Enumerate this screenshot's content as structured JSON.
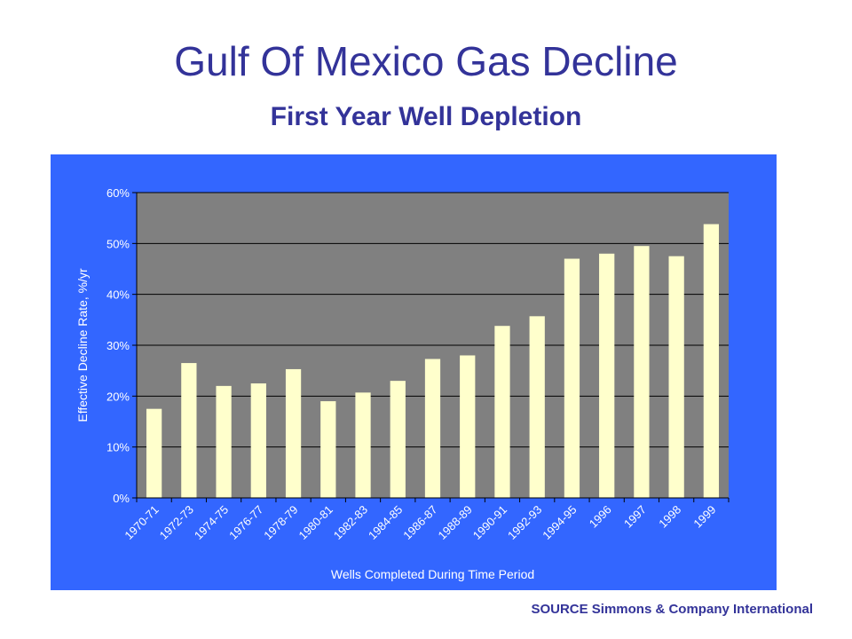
{
  "slide": {
    "title": "Gulf Of Mexico Gas Decline",
    "subtitle": "First Year Well Depletion",
    "source": "SOURCE  Simmons & Company International"
  },
  "colors": {
    "title": "#333399",
    "panel": "#3366ff",
    "plot_area": "#808080",
    "bar": "#ffffcc",
    "gridline": "#000000",
    "axis_text": "#ffffff"
  },
  "chart_data": {
    "type": "bar",
    "title": "",
    "xlabel": "Wells Completed During Time Period",
    "ylabel": "Effective Decline Rate, %/yr",
    "ylim": [
      0,
      60
    ],
    "y_ticks": [
      "0%",
      "10%",
      "20%",
      "30%",
      "40%",
      "50%",
      "60%"
    ],
    "grid": true,
    "legend": "none",
    "categories": [
      "1970-71",
      "1972-73",
      "1974-75",
      "1976-77",
      "1978-79",
      "1980-81",
      "1982-83",
      "1984-85",
      "1986-87",
      "1988-89",
      "1990-91",
      "1992-93",
      "1994-95",
      "1996",
      "1997",
      "1998",
      "1999"
    ],
    "values": [
      17.5,
      26.5,
      22,
      22.5,
      25.3,
      19,
      20.7,
      23,
      27.3,
      28,
      33.8,
      35.7,
      47,
      48,
      49.5,
      47.5,
      53.8
    ]
  }
}
